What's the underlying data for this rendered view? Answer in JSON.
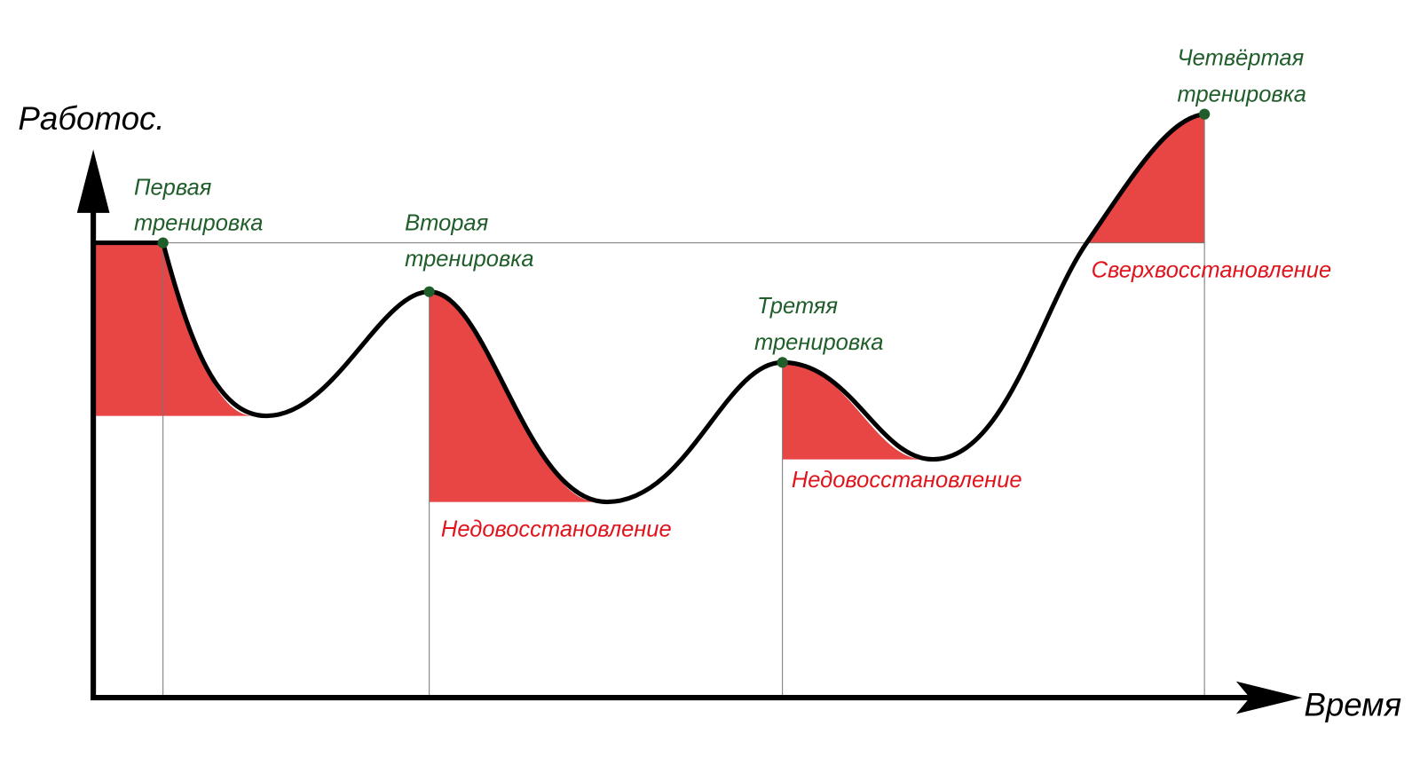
{
  "axes": {
    "y_label": "Работос.",
    "x_label": "Время"
  },
  "trainings": [
    {
      "lines": [
        "Первая",
        "тренировка"
      ]
    },
    {
      "lines": [
        "Вторая",
        "тренировка"
      ]
    },
    {
      "lines": [
        "Третяя",
        "тренировка"
      ]
    },
    {
      "lines": [
        "Четвёртая",
        "тренировка"
      ]
    }
  ],
  "regions": [
    "Недовосстановление",
    "Недовосстановление",
    "Сверхвосстановление"
  ]
}
